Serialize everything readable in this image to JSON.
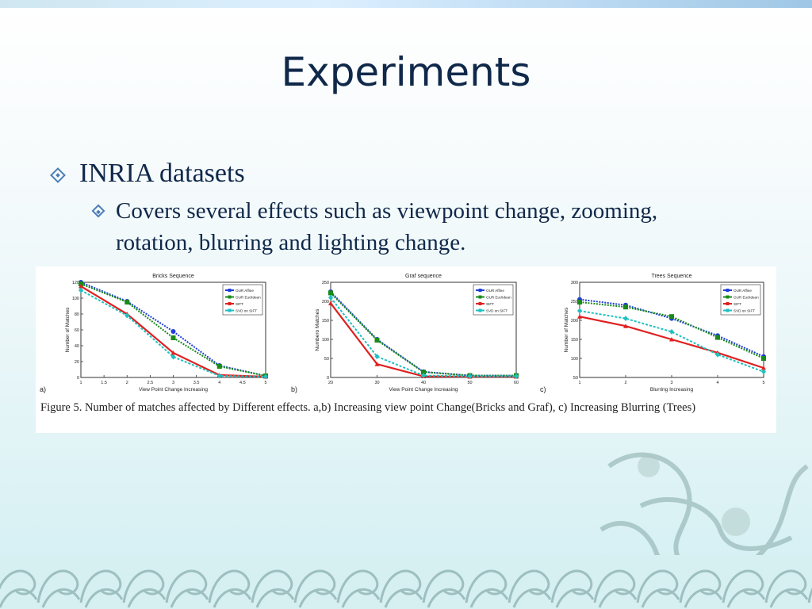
{
  "slide": {
    "title": "Experiments",
    "bullet1": "INRIA datasets",
    "bullet2": "Covers several effects such as viewpoint change, zooming, rotation, blurring and lighting change."
  },
  "figure": {
    "caption": "Figure 5. Number of matches affected by Different effects. a,b) Increasing view point Change(Bricks and Graf), c) Increasing Blurring (Trees)",
    "labels": [
      "a)",
      "b)",
      "c)"
    ]
  },
  "chart_data": [
    {
      "type": "line",
      "title": "Bricks Sequence",
      "xlabel": "View Point Change Increasing",
      "ylabel": "Number of Matches",
      "x": [
        1,
        2,
        3,
        4,
        5
      ],
      "xticks": [
        "1",
        "1.5",
        "2",
        "2.5",
        "3",
        "3.5",
        "4",
        "4.5",
        "5"
      ],
      "yticks": [
        "0",
        "20",
        "40",
        "60",
        "80",
        "100",
        "120"
      ],
      "xlim": [
        1,
        5
      ],
      "ylim": [
        0,
        120
      ],
      "series": [
        {
          "name": "OUR Affine",
          "color": "#1f3fd6",
          "values": [
            120,
            96,
            58,
            15,
            2
          ]
        },
        {
          "name": "OUR Euclidean",
          "color": "#1a8a1a",
          "values": [
            118,
            95,
            50,
            14,
            2
          ]
        },
        {
          "name": "SIFT",
          "color": "#e02020",
          "values": [
            115,
            80,
            31,
            3,
            1
          ]
        },
        {
          "name": "SVD on SIFT",
          "color": "#1fc0c0",
          "values": [
            110,
            78,
            26,
            2,
            1
          ]
        }
      ]
    },
    {
      "type": "line",
      "title": "Graf sequence",
      "xlabel": "View Point Change Increasing",
      "ylabel": "Numbero Matches",
      "x": [
        20,
        30,
        40,
        50,
        60
      ],
      "xticks": [
        "20",
        "30",
        "40",
        "50",
        "60"
      ],
      "yticks": [
        "0",
        "50",
        "100",
        "150",
        "200",
        "250"
      ],
      "xlim": [
        20,
        60
      ],
      "ylim": [
        0,
        250
      ],
      "series": [
        {
          "name": "OUR Affine",
          "color": "#1f3fd6",
          "values": [
            225,
            100,
            15,
            5,
            5
          ]
        },
        {
          "name": "OUR Euclidean",
          "color": "#1a8a1a",
          "values": [
            222,
            98,
            14,
            5,
            5
          ]
        },
        {
          "name": "SIFT",
          "color": "#e02020",
          "values": [
            195,
            35,
            3,
            2,
            2
          ]
        },
        {
          "name": "SVD on SIFT",
          "color": "#1fc0c0",
          "values": [
            210,
            55,
            5,
            3,
            3
          ]
        }
      ]
    },
    {
      "type": "line",
      "title": "Trees Sequence",
      "xlabel": "Blurring Increasing",
      "ylabel": "Number of Matches",
      "x": [
        1,
        2,
        3,
        4,
        5
      ],
      "xticks": [
        "1",
        "2",
        "3",
        "4",
        "5"
      ],
      "yticks": [
        "50",
        "100",
        "150",
        "200",
        "250",
        "300"
      ],
      "xlim": [
        1,
        5
      ],
      "ylim": [
        50,
        300
      ],
      "series": [
        {
          "name": "OUR Affine",
          "color": "#1f3fd6",
          "values": [
            255,
            240,
            205,
            160,
            105
          ]
        },
        {
          "name": "OUR Euclidean",
          "color": "#1a8a1a",
          "values": [
            248,
            235,
            210,
            155,
            100
          ]
        },
        {
          "name": "SIFT",
          "color": "#e02020",
          "values": [
            210,
            185,
            150,
            115,
            75
          ]
        },
        {
          "name": "SVD on SIFT",
          "color": "#1fc0c0",
          "values": [
            225,
            205,
            170,
            110,
            65
          ]
        }
      ]
    }
  ]
}
